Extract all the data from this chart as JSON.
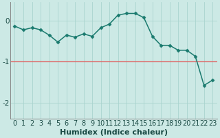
{
  "x": [
    0,
    1,
    2,
    3,
    4,
    5,
    6,
    7,
    8,
    9,
    10,
    11,
    12,
    13,
    14,
    15,
    16,
    17,
    18,
    19,
    20,
    21,
    22,
    23
  ],
  "y": [
    -0.13,
    -0.22,
    -0.17,
    -0.22,
    -0.35,
    -0.52,
    -0.35,
    -0.4,
    -0.32,
    -0.38,
    -0.17,
    -0.08,
    0.14,
    0.18,
    0.18,
    0.08,
    -0.38,
    -0.6,
    -0.6,
    -0.72,
    -0.72,
    -0.87,
    -1.58,
    -1.45
  ],
  "line_color": "#1a7a6e",
  "marker": "D",
  "marker_size": 2.5,
  "bg_color": "#cce9e5",
  "grid_color": "#aad4cf",
  "xlabel": "Humidex (Indice chaleur)",
  "xlabel_fontsize": 8,
  "tick_fontsize": 7,
  "ylim": [
    -2.4,
    0.45
  ],
  "xlim": [
    -0.5,
    23.5
  ],
  "yticks": [
    0,
    -1,
    -2
  ],
  "xticks": [
    0,
    1,
    2,
    3,
    4,
    5,
    6,
    7,
    8,
    9,
    10,
    11,
    12,
    13,
    14,
    15,
    16,
    17,
    18,
    19,
    20,
    21,
    22,
    23
  ],
  "hline_color": "#e06060",
  "hline_y": -1.0,
  "hline_lw": 0.9,
  "spine_color": "#888888",
  "line_width": 1.1
}
